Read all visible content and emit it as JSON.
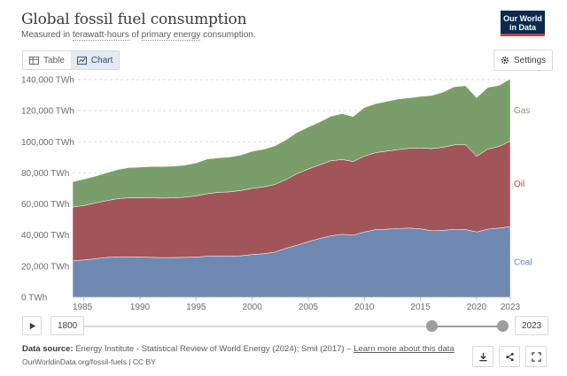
{
  "header": {
    "title": "Global fossil fuel consumption",
    "subtitle_pre": "Measured in ",
    "subtitle_unit": "terawatt-hours",
    "subtitle_mid": " of ",
    "subtitle_metric": "primary energy",
    "subtitle_post": " consumption."
  },
  "logo": {
    "line1": "Our World",
    "line2": "in Data"
  },
  "tabs": [
    {
      "label": "Table",
      "icon": "table-icon",
      "active": false
    },
    {
      "label": "Chart",
      "icon": "chart-icon",
      "active": true
    }
  ],
  "settings_label": "Settings",
  "timeline": {
    "start_label": "1800",
    "end_label": "2023"
  },
  "footer": {
    "source_label": "Data source:",
    "source_text": " Energy Institute - Statistical Review of World Energy (2024); Smil (2017) – ",
    "learn_more": "Learn more about this data",
    "url": "OurWorldinData.org/fossil-fuels | CC BY"
  },
  "actions": [
    "download-icon",
    "share-icon",
    "fullscreen-icon"
  ],
  "colors": {
    "coal": "#6f88b1",
    "oil": "#a15558",
    "gas": "#7a9e69",
    "grid": "#dddddd",
    "axis_text": "#6b6b6b"
  },
  "chart_data": {
    "type": "area",
    "stacked": true,
    "title": "Global fossil fuel consumption",
    "ylabel": "",
    "ylim": [
      0,
      140000
    ],
    "yticks": [
      0,
      20000,
      40000,
      60000,
      80000,
      100000,
      120000,
      140000
    ],
    "ytick_labels": [
      "0 TWh",
      "20,000 TWh",
      "40,000 TWh",
      "60,000 TWh",
      "80,000 TWh",
      "100,000 TWh",
      "120,000 TWh",
      "140,000 TWh"
    ],
    "xticks": [
      1985,
      1990,
      1995,
      2000,
      2005,
      2010,
      2015,
      2020,
      2023
    ],
    "x": [
      1984,
      1985,
      1986,
      1987,
      1988,
      1989,
      1990,
      1991,
      1992,
      1993,
      1994,
      1995,
      1996,
      1997,
      1998,
      1999,
      2000,
      2001,
      2002,
      2003,
      2004,
      2005,
      2006,
      2007,
      2008,
      2009,
      2010,
      2011,
      2012,
      2013,
      2014,
      2015,
      2016,
      2017,
      2018,
      2019,
      2020,
      2021,
      2022,
      2023
    ],
    "series": [
      {
        "name": "Coal",
        "values": [
          23500,
          24000,
          24800,
          25600,
          26000,
          26100,
          25900,
          25700,
          25500,
          25600,
          25700,
          25900,
          26400,
          26500,
          26400,
          26700,
          27500,
          28000,
          29000,
          31500,
          33500,
          35800,
          37800,
          39500,
          40500,
          40000,
          42000,
          43500,
          43800,
          44200,
          44500,
          44000,
          42800,
          43000,
          43700,
          43600,
          42000,
          43800,
          44500,
          45500
        ]
      },
      {
        "name": "Oil",
        "values": [
          34500,
          35000,
          35800,
          36500,
          37400,
          37900,
          38100,
          38200,
          38300,
          38300,
          38700,
          39300,
          40200,
          41000,
          41400,
          42000,
          42600,
          43000,
          43500,
          44200,
          46000,
          46700,
          47300,
          48300,
          48100,
          47300,
          48800,
          49500,
          50200,
          50800,
          51300,
          52000,
          52800,
          53500,
          54300,
          54500,
          48700,
          51500,
          52500,
          55000
        ]
      },
      {
        "name": "Gas",
        "values": [
          16300,
          17000,
          17200,
          17900,
          18700,
          19400,
          19700,
          20200,
          20300,
          20400,
          20600,
          21200,
          22300,
          22200,
          22400,
          22800,
          23800,
          24200,
          24800,
          25500,
          26500,
          27000,
          27600,
          28600,
          29500,
          28900,
          31300,
          31500,
          32000,
          32500,
          32500,
          33200,
          34200,
          35400,
          37400,
          38000,
          37600,
          39700,
          39300,
          40000
        ]
      }
    ]
  }
}
